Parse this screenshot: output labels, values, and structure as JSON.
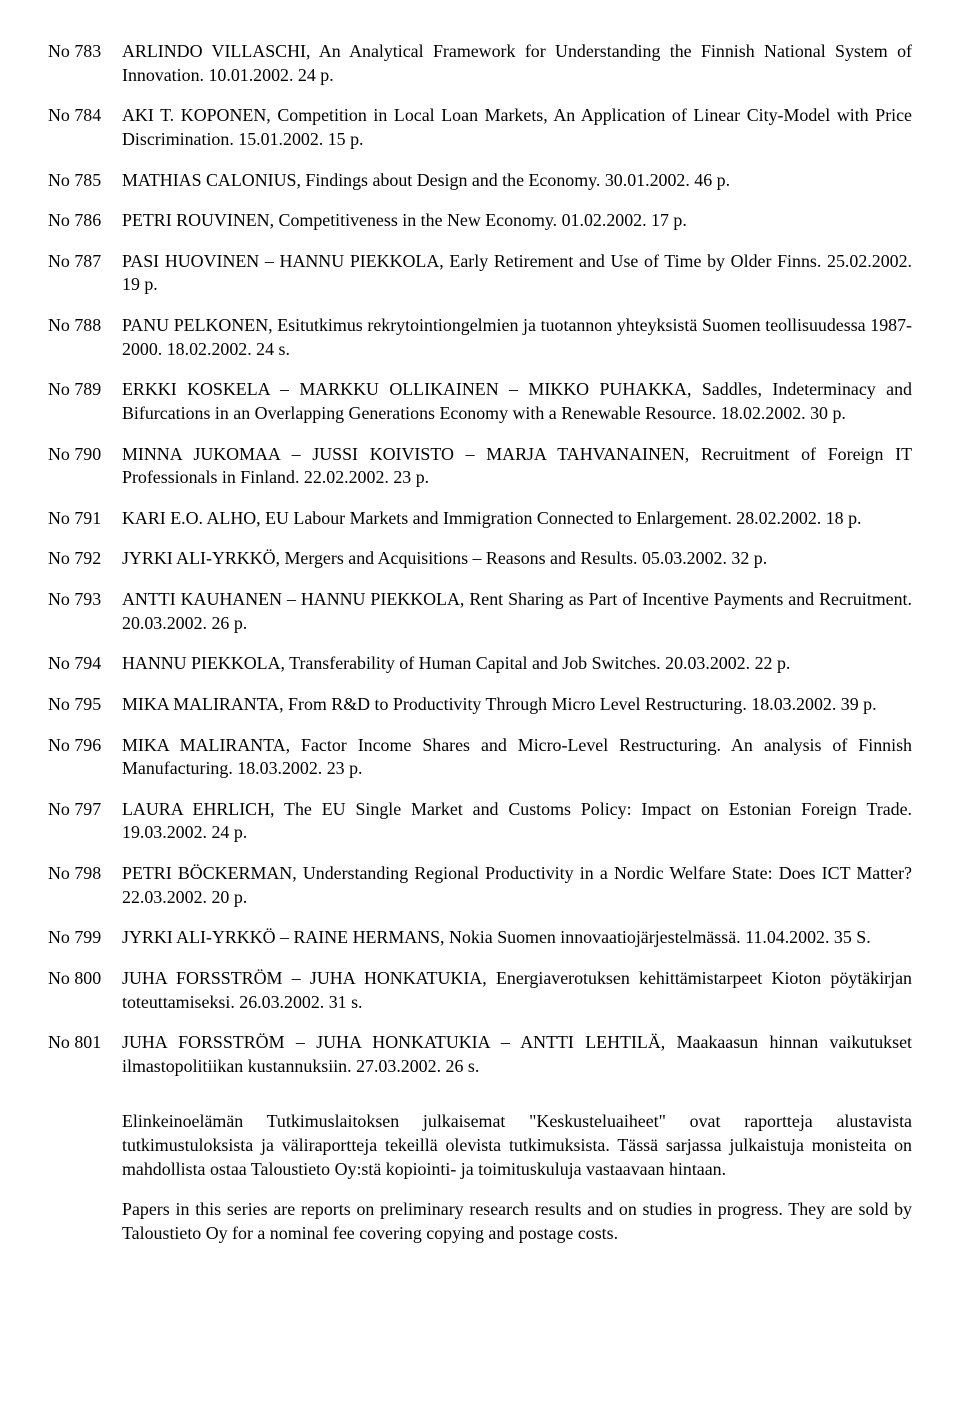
{
  "entries": [
    {
      "no": "No 783",
      "text": "ARLINDO VILLASCHI, An Analytical Framework for Understanding the Finnish National System of Innovation. 10.01.2002. 24 p."
    },
    {
      "no": "No 784",
      "text": "AKI T. KOPONEN, Competition in Local Loan Markets, An Application of Linear City-Model with Price Discrimination. 15.01.2002. 15 p."
    },
    {
      "no": "No 785",
      "text": "MATHIAS CALONIUS, Findings about Design and the Economy. 30.01.2002. 46 p."
    },
    {
      "no": "No 786",
      "text": "PETRI ROUVINEN, Competitiveness in the New Economy. 01.02.2002. 17 p."
    },
    {
      "no": "No 787",
      "text": "PASI HUOVINEN – HANNU PIEKKOLA, Early Retirement and Use of Time by Older Finns. 25.02.2002. 19 p."
    },
    {
      "no": "No 788",
      "text": "PANU PELKONEN, Esitutkimus rekrytointiongelmien ja tuotannon yhteyksistä Suomen teollisuudessa 1987-2000. 18.02.2002. 24 s."
    },
    {
      "no": "No 789",
      "text": "ERKKI KOSKELA – MARKKU OLLIKAINEN – MIKKO PUHAKKA, Saddles, Indeterminacy and Bifurcations in an Overlapping Generations Economy with a Renewable Resource. 18.02.2002. 30 p."
    },
    {
      "no": "No 790",
      "text": "MINNA JUKOMAA – JUSSI KOIVISTO – MARJA TAHVANAINEN, Recruitment of Foreign IT Professionals in Finland. 22.02.2002. 23 p."
    },
    {
      "no": "No 791",
      "text": "KARI E.O. ALHO, EU Labour Markets and Immigration Connected to Enlargement. 28.02.2002. 18 p."
    },
    {
      "no": "No 792",
      "text": "JYRKI ALI-YRKKÖ, Mergers and Acquisitions – Reasons and Results. 05.03.2002. 32 p."
    },
    {
      "no": "No 793",
      "text": "ANTTI KAUHANEN – HANNU PIEKKOLA, Rent Sharing as Part of Incentive Payments and Recruitment. 20.03.2002. 26 p."
    },
    {
      "no": "No 794",
      "text": "HANNU PIEKKOLA, Transferability of Human Capital and Job Switches. 20.03.2002. 22 p."
    },
    {
      "no": "No 795",
      "text": "MIKA MALIRANTA, From R&D to Productivity Through Micro Level Restructuring. 18.03.2002. 39 p."
    },
    {
      "no": "No 796",
      "text": "MIKA MALIRANTA, Factor Income Shares and Micro-Level Restructuring. An analysis of Finnish Manufacturing. 18.03.2002. 23 p."
    },
    {
      "no": "No 797",
      "text": "LAURA EHRLICH, The EU Single Market and Customs Policy: Impact on Estonian Foreign Trade. 19.03.2002. 24 p."
    },
    {
      "no": "No 798",
      "text": "PETRI BÖCKERMAN, Understanding Regional Productivity in a Nordic Welfare State: Does ICT Matter? 22.03.2002. 20 p."
    },
    {
      "no": "No 799",
      "text": "JYRKI ALI-YRKKÖ – RAINE HERMANS, Nokia Suomen innovaatiojärjestelmässä. 11.04.2002. 35 S."
    },
    {
      "no": "No 800",
      "text": "JUHA FORSSTRÖM – JUHA HONKATUKIA, Energiaverotuksen kehittämistarpeet Kioton pöytäkirjan toteuttamiseksi. 26.03.2002. 31 s."
    },
    {
      "no": "No 801",
      "text": "JUHA FORSSTRÖM – JUHA HONKATUKIA – ANTTI LEHTILÄ, Maakaasun hinnan vaikutukset ilmastopolitiikan kustannuksiin. 27.03.2002. 26 s."
    }
  ],
  "footnote": {
    "p1": "Elinkeinoelämän Tutkimuslaitoksen julkaisemat \"Keskusteluaiheet\" ovat raportteja alustavista tutkimustuloksista ja väliraportteja tekeillä olevista tutkimuksista. Tässä sarjassa julkaistuja monisteita on mahdollista ostaa Taloustieto Oy:stä kopiointi- ja toimituskuluja vastaavaan hintaan.",
    "p2": "Papers in this series are reports on preliminary research results and on studies in progress. They are sold by Taloustieto Oy for a nominal fee covering copying and postage costs."
  }
}
